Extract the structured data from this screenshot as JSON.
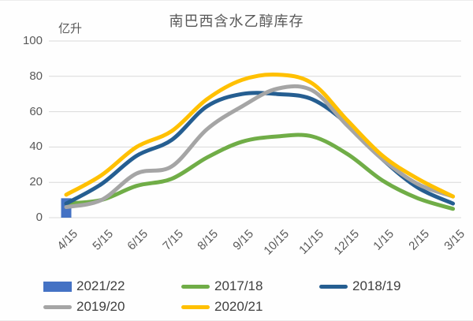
{
  "chart_data": {
    "type": "line",
    "title": "南巴西含水乙醇库存",
    "unit_label": "亿升",
    "categories": [
      "4/15",
      "5/15",
      "6/15",
      "7/15",
      "8/15",
      "9/15",
      "10/15",
      "11/15",
      "12/15",
      "1/15",
      "2/15",
      "3/15"
    ],
    "ylim": [
      0,
      100
    ],
    "yticks": [
      0,
      20,
      40,
      60,
      80,
      100
    ],
    "grid": true,
    "gridline_color": "#d9d9d9",
    "legend_position": "bottom",
    "series": [
      {
        "name": "2021/22",
        "type": "bar",
        "color": "#4472C4",
        "values": [
          11,
          null,
          null,
          null,
          null,
          null,
          null,
          null,
          null,
          null,
          null,
          null
        ]
      },
      {
        "name": "2017/18",
        "type": "line",
        "color": "#70AD47",
        "values": [
          8,
          10,
          18,
          22,
          34,
          43,
          46,
          46,
          36,
          21,
          11,
          5
        ]
      },
      {
        "name": "2018/19",
        "type": "line",
        "color": "#255E91",
        "values": [
          8,
          19,
          35,
          44,
          63,
          70,
          70,
          67,
          53,
          33,
          17,
          8
        ]
      },
      {
        "name": "2019/20",
        "type": "line",
        "color": "#A5A5A5",
        "values": [
          6,
          10,
          25,
          29,
          50,
          63,
          73,
          72,
          52,
          33,
          19,
          12
        ]
      },
      {
        "name": "2020/21",
        "type": "line",
        "color": "#FFC000",
        "values": [
          13,
          24,
          40,
          49,
          67,
          78,
          81,
          76,
          55,
          35,
          22,
          12
        ]
      }
    ]
  }
}
